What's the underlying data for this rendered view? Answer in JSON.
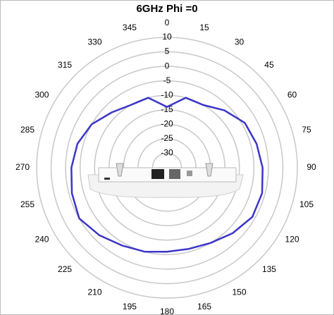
{
  "chart_data": {
    "type": "polar",
    "title": "6GHz Phi =0",
    "theta": [
      0,
      15,
      30,
      45,
      60,
      75,
      90,
      105,
      120,
      135,
      150,
      165,
      180,
      195,
      210,
      225,
      240,
      255,
      270,
      285,
      300,
      315,
      330,
      345
    ],
    "series": [
      {
        "color": "#3b35c8",
        "values": [
          -14,
          -10,
          -10,
          -7,
          -4,
          -3,
          -2,
          -1,
          -1,
          -3,
          -5,
          -6,
          -6,
          -5,
          -4,
          -2,
          0,
          -1,
          -2,
          -3,
          -5,
          -8,
          -10,
          -10
        ]
      }
    ],
    "rlim": [
      -35,
      10
    ],
    "rticks": [
      10,
      5,
      0,
      -5,
      -10,
      -15,
      -20,
      -25,
      -30
    ],
    "thetaticks": [
      0,
      15,
      30,
      45,
      60,
      75,
      90,
      105,
      120,
      135,
      150,
      165,
      180,
      195,
      210,
      225,
      240,
      255,
      270,
      285,
      300,
      315,
      330,
      345
    ],
    "grid": true
  }
}
